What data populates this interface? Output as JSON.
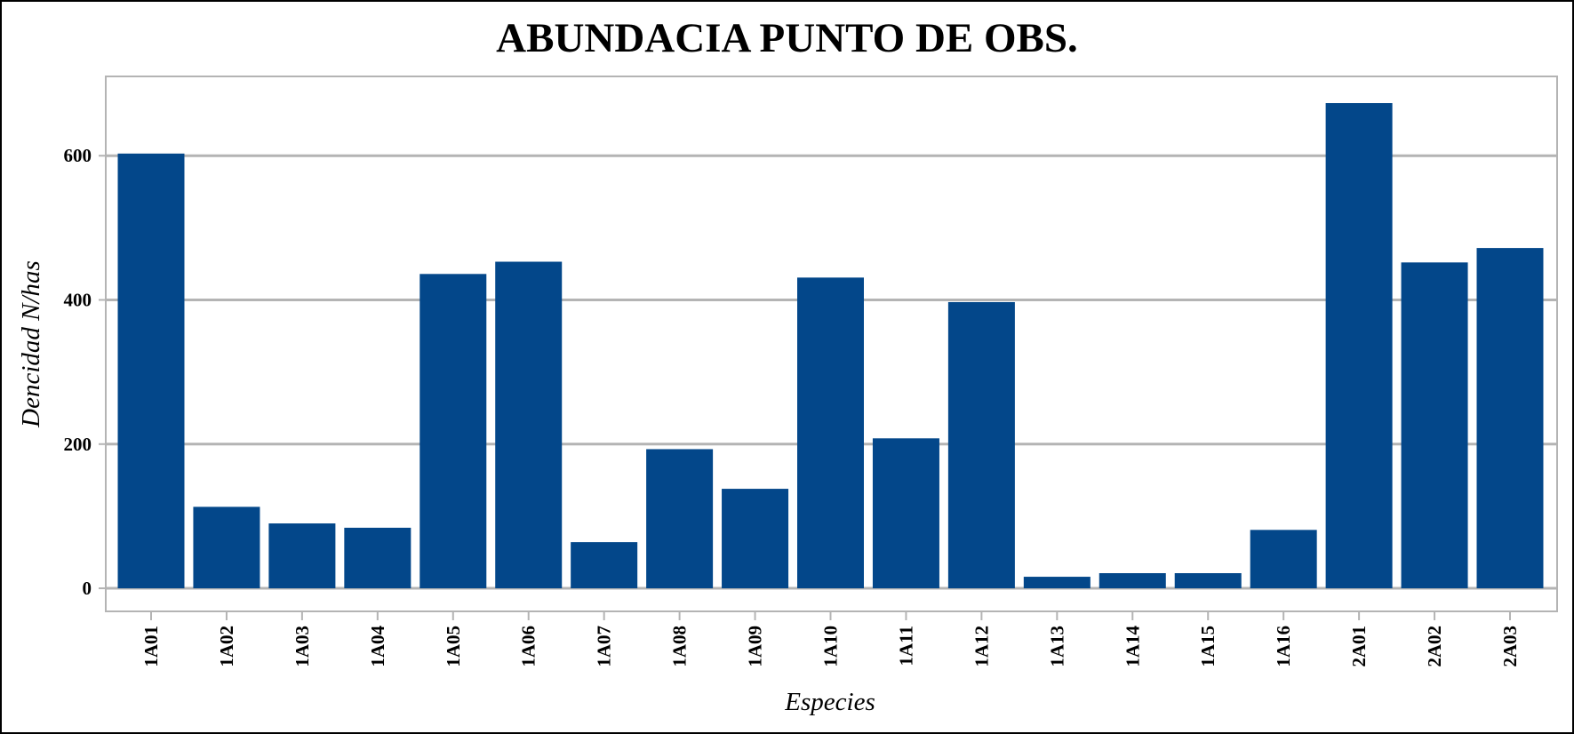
{
  "chart_data": {
    "type": "bar",
    "title": "ABUNDACIA PUNTO DE OBS.",
    "xlabel": "Especies",
    "ylabel": "Dencidad N/has",
    "categories": [
      "1A01",
      "1A02",
      "1A03",
      "1A04",
      "1A05",
      "1A06",
      "1A07",
      "1A08",
      "1A09",
      "1A10",
      "1A11",
      "1A12",
      "1A13",
      "1A14",
      "1A15",
      "1A16",
      "2A01",
      "2A02",
      "2A03"
    ],
    "values": [
      603,
      113,
      90,
      84,
      436,
      453,
      64,
      193,
      138,
      431,
      208,
      397,
      16,
      21,
      21,
      81,
      673,
      452,
      472
    ],
    "yticks": [
      0,
      200,
      400,
      600
    ],
    "ylim": [
      -32,
      710
    ],
    "grid": true,
    "bar_color": "#03478a",
    "grid_color": "#b4b4b4"
  }
}
